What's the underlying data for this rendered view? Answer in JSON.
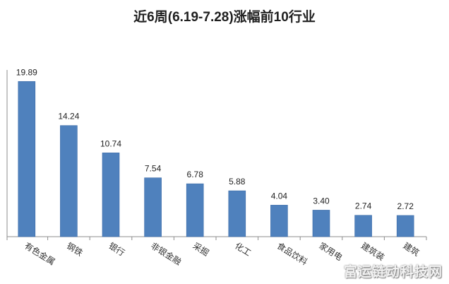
{
  "watermark": "富运链动科技网",
  "chart_data": {
    "type": "bar",
    "title": "近6周(6.19-7.28)涨幅前10行业",
    "xlabel": "",
    "ylabel": "",
    "categories": [
      "有色金属",
      "钢铁",
      "银行",
      "非银金融",
      "采掘",
      "化工",
      "食品饮料",
      "家用电",
      "建筑装",
      "建筑"
    ],
    "values": [
      19.89,
      14.24,
      10.74,
      7.54,
      6.78,
      5.88,
      4.04,
      3.4,
      2.74,
      2.72
    ],
    "value_labels": [
      "19.89",
      "14.24",
      "10.74",
      "7.54",
      "6.78",
      "5.88",
      "4.04",
      "3.40",
      "2.74",
      "2.72"
    ],
    "ylim": [
      0,
      21
    ],
    "grid": false,
    "colors": {
      "bar": "#4f81bd",
      "bar_edge": "#3d6ca8",
      "axis": "#8c8c8c"
    }
  }
}
